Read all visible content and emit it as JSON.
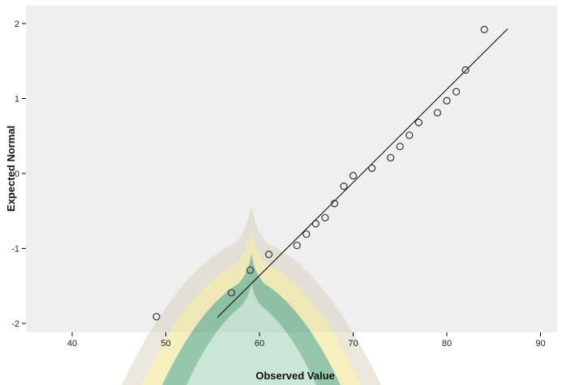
{
  "chart_data": {
    "type": "scatter",
    "title": "",
    "xlabel": "Observed Value",
    "ylabel": "Expected Normal",
    "xlim": [
      38,
      92
    ],
    "ylim": [
      -2.2,
      2.2
    ],
    "x_ticks": [
      40,
      50,
      60,
      70,
      80,
      90
    ],
    "y_ticks": [
      -2,
      -1,
      0,
      1,
      2
    ],
    "grid": false,
    "legend": "none",
    "colors": {
      "plot_background": "#efefef",
      "point_stroke": "#333333",
      "line": "#000000",
      "watermark_green": "#3f9a6b",
      "watermark_yellow": "#efe38a",
      "watermark_gray": "#d9d4c2"
    },
    "reference_line": {
      "x": [
        55.5,
        86.5
      ],
      "y": [
        -1.92,
        1.93
      ]
    },
    "points": [
      {
        "x": 49,
        "y": -1.91
      },
      {
        "x": 57,
        "y": -1.59
      },
      {
        "x": 59,
        "y": -1.29
      },
      {
        "x": 61,
        "y": -1.08
      },
      {
        "x": 64,
        "y": -0.96
      },
      {
        "x": 65,
        "y": -0.81
      },
      {
        "x": 66,
        "y": -0.67
      },
      {
        "x": 67,
        "y": -0.59
      },
      {
        "x": 68,
        "y": -0.4
      },
      {
        "x": 69,
        "y": -0.17
      },
      {
        "x": 70,
        "y": -0.03
      },
      {
        "x": 72,
        "y": 0.07
      },
      {
        "x": 74,
        "y": 0.21
      },
      {
        "x": 75,
        "y": 0.36
      },
      {
        "x": 76,
        "y": 0.51
      },
      {
        "x": 77,
        "y": 0.68
      },
      {
        "x": 79,
        "y": 0.81
      },
      {
        "x": 80,
        "y": 0.97
      },
      {
        "x": 81,
        "y": 1.09
      },
      {
        "x": 82,
        "y": 1.38
      },
      {
        "x": 84,
        "y": 1.92
      }
    ]
  }
}
